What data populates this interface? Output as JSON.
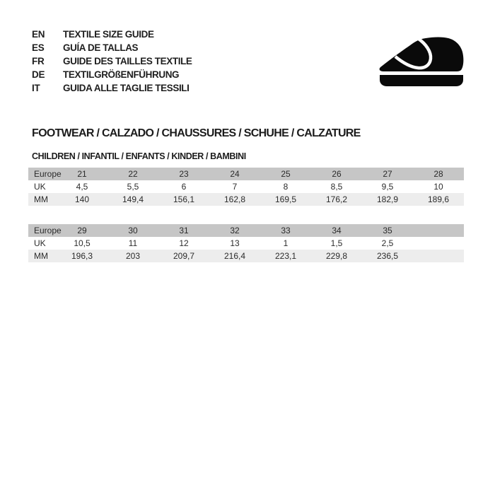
{
  "languages": [
    {
      "code": "EN",
      "title": "TEXTILE SIZE GUIDE"
    },
    {
      "code": "ES",
      "title": "GUÍA DE TALLAS"
    },
    {
      "code": "FR",
      "title": "GUIDE DES TAILLES TEXTILE"
    },
    {
      "code": "DE",
      "title": "TEXTILGRÖßENFÜHRUNG"
    },
    {
      "code": "IT",
      "title": "GUIDA ALLE TAGLIE TESSILI"
    }
  ],
  "icon": {
    "name": "children-shoe-icon",
    "color": "#0a0a0a"
  },
  "section_heading": "FOOTWEAR / CALZADO / CHAUSSURES / SCHUHE / CALZATURE",
  "subsection_heading": "CHILDREN / INFANTIL / ENFANTS / KINDER / BAMBINI",
  "colors": {
    "header_row_bg": "#c6c6c6",
    "alt_row_bg": "#ededed",
    "text": "#2b2b2b",
    "background": "#ffffff"
  },
  "size_tables": [
    {
      "rows": [
        {
          "label": "Europe",
          "values": [
            "21",
            "22",
            "23",
            "24",
            "25",
            "26",
            "27",
            "28"
          ]
        },
        {
          "label": "UK",
          "values": [
            "4,5",
            "5,5",
            "6",
            "7",
            "8",
            "8,5",
            "9,5",
            "10"
          ]
        },
        {
          "label": "MM",
          "values": [
            "140",
            "149,4",
            "156,1",
            "162,8",
            "169,5",
            "176,2",
            "182,9",
            "189,6"
          ]
        }
      ]
    },
    {
      "rows": [
        {
          "label": "Europe",
          "values": [
            "29",
            "30",
            "31",
            "32",
            "33",
            "34",
            "35",
            ""
          ]
        },
        {
          "label": "UK",
          "values": [
            "10,5",
            "11",
            "12",
            "13",
            "1",
            "1,5",
            "2,5",
            ""
          ]
        },
        {
          "label": "MM",
          "values": [
            "196,3",
            "203",
            "209,7",
            "216,4",
            "223,1",
            "229,8",
            "236,5",
            ""
          ]
        }
      ]
    }
  ]
}
